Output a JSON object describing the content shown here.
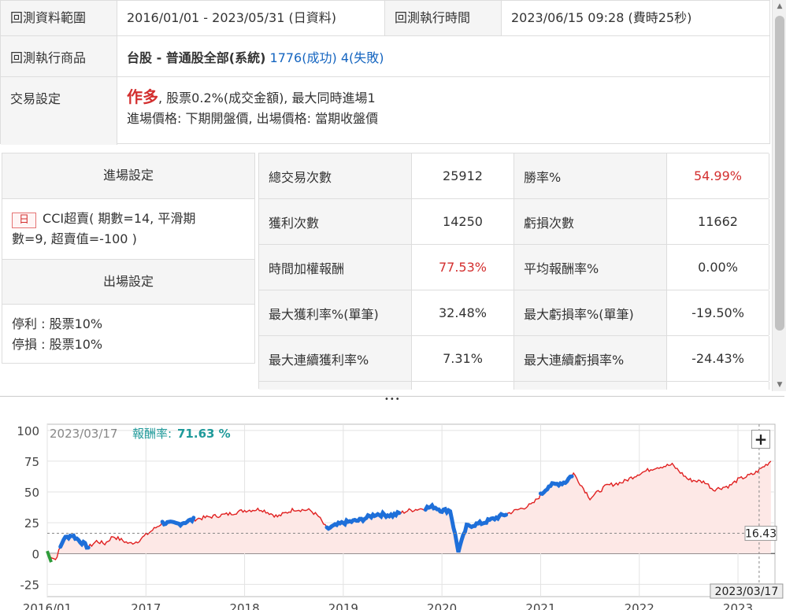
{
  "backtest": {
    "range_label": "回測資料範圍",
    "range_value": "2016/01/01 - 2023/05/31 (日資料)",
    "time_label": "回測執行時間",
    "time_value": "2023/06/15 09:28 (費時25秒)",
    "product_label": "回測執行商品",
    "product_name": "台股 - 普通股全部(系統)",
    "product_success": "1776(成功)",
    "product_fail": "4(失敗)",
    "trade_label": "交易設定",
    "trade_direction": "作多",
    "trade_detail": ", 股票0.2%(成交金額), 最大同時進場1",
    "trade_price": "進場價格: 下期開盤價, 出場價格: 當期收盤價"
  },
  "entry": {
    "header": "進場設定",
    "badge": "日",
    "line1": "CCI超賣( 期數=14, 平滑期",
    "line2": "數=9, 超賣值=-100 )"
  },
  "exit": {
    "header": "出場設定",
    "take_profit": "停利 : 股票10%",
    "stop_loss": "停損 : 股票10%"
  },
  "stats": [
    {
      "l1": "總交易次數",
      "v1": "25912",
      "l2": "勝率%",
      "v2": "54.99%",
      "v2_red": true
    },
    {
      "l1": "獲利次數",
      "v1": "14250",
      "l2": "虧損次數",
      "v2": "11662"
    },
    {
      "l1": "時間加權報酬",
      "v1": "77.53%",
      "v1_red": true,
      "l2": "平均報酬率%",
      "v2": "0.00%"
    },
    {
      "l1": "最大獲利率%(單筆)",
      "v1": "32.48%",
      "l2": "最大虧損率%(單筆)",
      "v2": "-19.50%"
    },
    {
      "l1": "最大連續獲利率%",
      "v1": "7.31%",
      "l2": "最大連續虧損率%",
      "v2": "-24.43%"
    }
  ],
  "divider_dots": "•••",
  "chart": {
    "plus": "+",
    "tooltip_date": "2023/03/17",
    "tooltip_label": "報酬率:",
    "tooltip_value": "71.63 %",
    "cross_value": "16.43",
    "cross_date": "2023/03/17",
    "line_color": "#e02020",
    "fill_color": "#fde8e6",
    "marker_color": "#1e6fd9",
    "early_marker_color": "#2e9b3a"
  },
  "chart_data": {
    "type": "area",
    "title": "",
    "xlabel": "",
    "ylabel": "",
    "ylim": [
      -35,
      105
    ],
    "yticks": [
      "100",
      "75",
      "50",
      "25",
      "0",
      "-25"
    ],
    "xticks": [
      "2016/01",
      "2017",
      "2018",
      "2019",
      "2020",
      "2021",
      "2022",
      "2023"
    ],
    "series": [
      {
        "x": [
          "2016/01",
          "2016/02",
          "2016/03",
          "2016/04",
          "2016/06",
          "2016/07",
          "2016/08",
          "2016/09",
          "2016/11",
          "2016/12",
          "2017/01",
          "2017/03",
          "2017/05",
          "2017/07",
          "2017/09",
          "2017/11",
          "2018/01",
          "2018/03",
          "2018/05",
          "2018/07",
          "2018/09",
          "2018/10",
          "2018/11",
          "2019/01",
          "2019/03",
          "2019/05",
          "2019/07",
          "2019/09",
          "2019/11",
          "2019/12",
          "2020/01",
          "2020/02",
          "2020/03",
          "2020/04",
          "2020/06",
          "2020/08",
          "2020/10",
          "2020/12",
          "2021/02",
          "2021/04",
          "2021/05",
          "2021/07",
          "2021/09",
          "2021/11",
          "2022/01",
          "2022/03",
          "2022/05",
          "2022/07",
          "2022/09",
          "2022/10",
          "2022/12",
          "2023/01",
          "2023/03",
          "2023/05"
        ],
        "y": [
          0,
          -5,
          12,
          15,
          5,
          10,
          8,
          14,
          8,
          10,
          15,
          25,
          24,
          28,
          30,
          32,
          35,
          36,
          30,
          36,
          35,
          30,
          20,
          25,
          27,
          32,
          31,
          35,
          37,
          38,
          35,
          35,
          2,
          22,
          25,
          30,
          35,
          40,
          55,
          58,
          65,
          45,
          55,
          58,
          65,
          70,
          72,
          60,
          58,
          52,
          55,
          60,
          65,
          75
        ]
      }
    ]
  }
}
